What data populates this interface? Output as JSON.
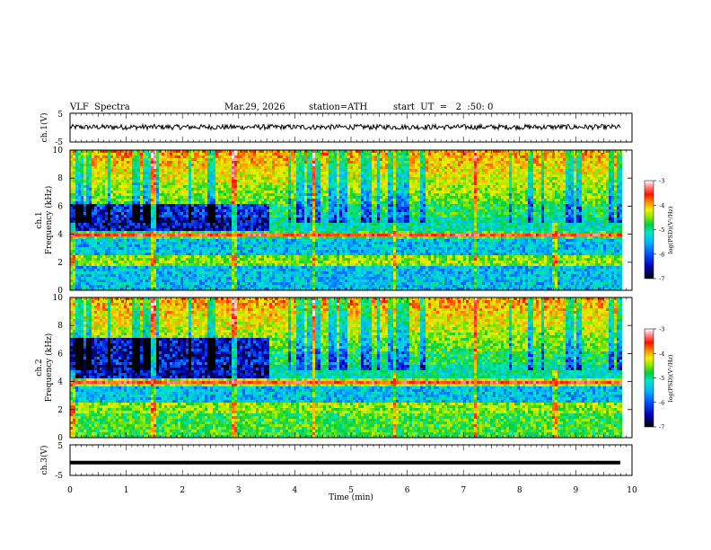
{
  "header": {
    "title": "VLF  Spectra",
    "date": "Mar.29, 2026",
    "station": "station=ATH",
    "start_ut": "start  UT  =   2  :50: 0"
  },
  "chart_data": [
    {
      "type": "line",
      "name": "ch1_waveform",
      "ylabel": "ch.1(V)",
      "ylim": [
        -5,
        5
      ],
      "yticks": [
        "5",
        "-5"
      ],
      "baseline": 0.2,
      "amplitude": 0.9
    },
    {
      "type": "heatmap",
      "name": "ch1_spectrogram",
      "ylabel_top": "ch.1",
      "ylabel": "Frequency  (kHz)",
      "ylim": [
        0,
        10
      ],
      "yticks": [
        "0",
        "2",
        "4",
        "6",
        "8",
        "10"
      ],
      "colorbar": {
        "label": "log(PSD)(V²/Hz)",
        "range": [
          -7,
          -3
        ],
        "ticks": [
          "-3",
          "-4",
          "-5",
          "-6",
          "-7"
        ]
      }
    },
    {
      "type": "heatmap",
      "name": "ch2_spectrogram",
      "ylabel_top": "ch.2",
      "ylabel": "Frequency  (kHz)",
      "ylim": [
        0,
        10
      ],
      "yticks": [
        "0",
        "2",
        "4",
        "6",
        "8",
        "10"
      ],
      "colorbar": {
        "label": "log(PSD)(V²/Hz)",
        "range": [
          -7,
          -3
        ],
        "ticks": [
          "-3",
          "-4",
          "-5",
          "-6",
          "-7"
        ]
      }
    },
    {
      "type": "line",
      "name": "ch3_waveform",
      "ylabel": "ch.3(V)",
      "ylim": [
        -5,
        5
      ],
      "yticks": [
        "5",
        "-5"
      ],
      "baseline": -0.8,
      "amplitude": 0.05
    }
  ],
  "xaxis": {
    "label": "Time  (min)",
    "xlim": [
      0,
      10
    ],
    "ticks": [
      "0",
      "1",
      "2",
      "3",
      "4",
      "5",
      "6",
      "7",
      "8",
      "9",
      "10"
    ],
    "data_end": 9.8
  },
  "colors": {
    "axis": "#000000",
    "trace": "#000000",
    "colormap": [
      "#000000",
      "#0000b4",
      "#0050ff",
      "#00b4ff",
      "#00e6c8",
      "#00d040",
      "#8ce800",
      "#f0f000",
      "#ff9000",
      "#ff1000",
      "#ff8c8c",
      "#ffffff"
    ]
  }
}
